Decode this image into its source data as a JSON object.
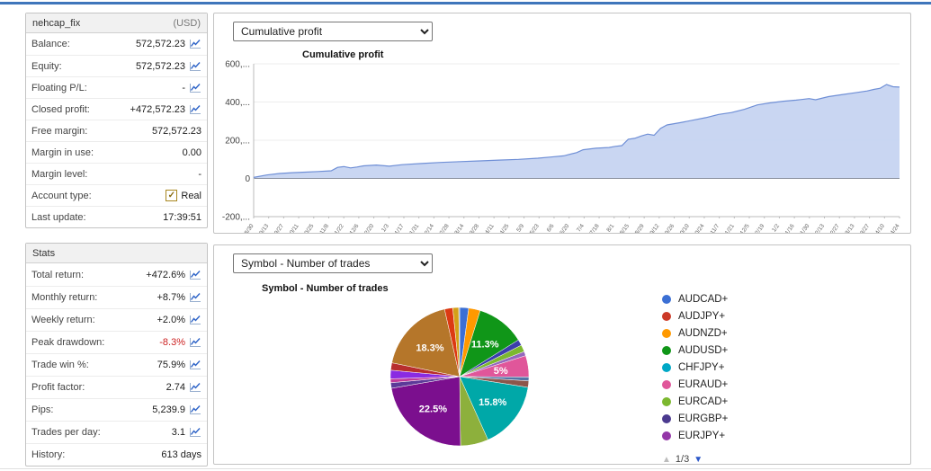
{
  "account_panel": {
    "title": "nehcap_fix",
    "currency": "(USD)",
    "rows": [
      {
        "label": "Balance:",
        "value": "572,572.23",
        "icon": true
      },
      {
        "label": "Equity:",
        "value": "572,572.23",
        "icon": true
      },
      {
        "label": "Floating P/L:",
        "value": "-",
        "icon": true
      },
      {
        "label": "Closed profit:",
        "value": "+472,572.23",
        "icon": true
      },
      {
        "label": "Free margin:",
        "value": "572,572.23",
        "icon": false
      },
      {
        "label": "Margin in use:",
        "value": "0.00",
        "icon": false
      },
      {
        "label": "Margin level:",
        "value": "-",
        "icon": false
      },
      {
        "label": "Account type:",
        "value": "Real",
        "icon": false,
        "checkbox": true
      },
      {
        "label": "Last update:",
        "value": "17:39:51",
        "icon": false
      }
    ]
  },
  "stats_panel": {
    "title": "Stats",
    "rows": [
      {
        "label": "Total return:",
        "value": "+472.6%",
        "icon": true
      },
      {
        "label": "Monthly return:",
        "value": "+8.7%",
        "icon": true
      },
      {
        "label": "Weekly return:",
        "value": "+2.0%",
        "icon": true
      },
      {
        "label": "Peak drawdown:",
        "value": "-8.3%",
        "icon": true,
        "negative": true
      },
      {
        "label": "Trade win %:",
        "value": "75.9%",
        "icon": true
      },
      {
        "label": "Profit factor:",
        "value": "2.74",
        "icon": true
      },
      {
        "label": "Pips:",
        "value": "5,239.9",
        "icon": true
      },
      {
        "label": "Trades per day:",
        "value": "3.1",
        "icon": true
      },
      {
        "label": "History:",
        "value": "613 days",
        "icon": false
      }
    ]
  },
  "cumulative_panel": {
    "dropdown_value": "Cumulative profit"
  },
  "pie_panel": {
    "dropdown_value": "Symbol - Number of trades",
    "pagination": "1/3"
  },
  "chart_data": [
    {
      "type": "area",
      "title": "Cumulative profit",
      "ylim": [
        -200000,
        600000
      ],
      "y_ticks": [
        {
          "label": "600,...",
          "value": 600000
        },
        {
          "label": "400,...",
          "value": 400000
        },
        {
          "label": "200,...",
          "value": 200000
        },
        {
          "label": "0",
          "value": 0
        },
        {
          "label": "-200,...",
          "value": -200000
        }
      ],
      "fill_color": "#c6d4f1",
      "line_color": "#6f8fd6",
      "series": [
        {
          "name": "Cumulative profit",
          "x": [
            0,
            2,
            4,
            6,
            8,
            10,
            12,
            13,
            14,
            15,
            16,
            17,
            19,
            21,
            23,
            26,
            29,
            32,
            35,
            38,
            41,
            44,
            46,
            48,
            50,
            51,
            53,
            55,
            56,
            57,
            58,
            59,
            60,
            61,
            62,
            63,
            64,
            66,
            68,
            70,
            72,
            74,
            76,
            78,
            80,
            82,
            84,
            86,
            87,
            89,
            91,
            93,
            95,
            96,
            97,
            98,
            99,
            100
          ],
          "y": [
            5000,
            18000,
            26000,
            30000,
            33000,
            36000,
            40000,
            58000,
            62000,
            55000,
            60000,
            66000,
            70000,
            64000,
            72000,
            78000,
            84000,
            88000,
            92000,
            96000,
            100000,
            106000,
            112000,
            118000,
            135000,
            150000,
            158000,
            162000,
            168000,
            172000,
            205000,
            210000,
            222000,
            232000,
            226000,
            262000,
            280000,
            292000,
            305000,
            318000,
            335000,
            345000,
            362000,
            385000,
            396000,
            404000,
            410000,
            418000,
            412000,
            428000,
            438000,
            448000,
            458000,
            466000,
            472000,
            492000,
            480000,
            478000
          ]
        }
      ],
      "x_ticks": [
        "8/30",
        "9/13",
        "9/27",
        "10/11",
        "10/25",
        "11/8",
        "11/22",
        "12/6",
        "12/20",
        "1/3",
        "1/17",
        "1/31",
        "2/14",
        "2/28",
        "3/14",
        "3/28",
        "4/11",
        "4/25",
        "5/9",
        "5/23",
        "6/6",
        "6/20",
        "7/4",
        "7/18",
        "8/1",
        "8/15",
        "8/29",
        "9/12",
        "9/26",
        "10/10",
        "10/24",
        "11/7",
        "11/21",
        "12/5",
        "12/19",
        "1/2",
        "1/16",
        "1/30",
        "2/13",
        "2/27",
        "3/13",
        "3/27",
        "4/10",
        "4/24"
      ]
    },
    {
      "type": "pie",
      "title": "Symbol - Number of trades",
      "slices": [
        {
          "color": "#3B6FD4",
          "value": 2.1
        },
        {
          "color": "#FF9900",
          "value": 2.7
        },
        {
          "color": "#109618",
          "value": 11.3,
          "label": "11.3%"
        },
        {
          "color": "#3B3EAC",
          "value": 1.4
        },
        {
          "color": "#7CB82F",
          "value": 1.6
        },
        {
          "color": "#9467BD",
          "value": 1.0
        },
        {
          "color": "#E0569A",
          "value": 5.0,
          "label": "5%"
        },
        {
          "color": "#5574A6",
          "value": 0.9
        },
        {
          "color": "#8C564B",
          "value": 1.5
        },
        {
          "color": "#00A8A8",
          "value": 15.8,
          "label": "15.8%"
        },
        {
          "color": "#8DB03C",
          "value": 6.5
        },
        {
          "color": "#7B0F8E",
          "value": 22.5,
          "label": "22.5%"
        },
        {
          "color": "#5C3A99",
          "value": 1.3
        },
        {
          "color": "#C0399B",
          "value": 0.9
        },
        {
          "color": "#8A2BE2",
          "value": 2.0
        },
        {
          "color": "#B82E2E",
          "value": 1.7
        },
        {
          "color": "#B5762A",
          "value": 18.3,
          "label": "18.3%"
        },
        {
          "color": "#DC3912",
          "value": 1.9
        },
        {
          "color": "#D4A017",
          "value": 1.4
        },
        {
          "color": "#888888",
          "value": 0.2
        }
      ],
      "legend": [
        {
          "label": "AUDCAD+",
          "color": "#3B6FD4"
        },
        {
          "label": "AUDJPY+",
          "color": "#CC3A28"
        },
        {
          "label": "AUDNZD+",
          "color": "#FF9900"
        },
        {
          "label": "AUDUSD+",
          "color": "#109618"
        },
        {
          "label": "CHFJPY+",
          "color": "#00A8C6"
        },
        {
          "label": "EURAUD+",
          "color": "#E0569A"
        },
        {
          "label": "EURCAD+",
          "color": "#7CB82F"
        },
        {
          "label": "EURGBP+",
          "color": "#4B3A8F"
        },
        {
          "label": "EURJPY+",
          "color": "#9437A8"
        }
      ],
      "legend_position": "right",
      "legend_page": "1/3"
    }
  ]
}
